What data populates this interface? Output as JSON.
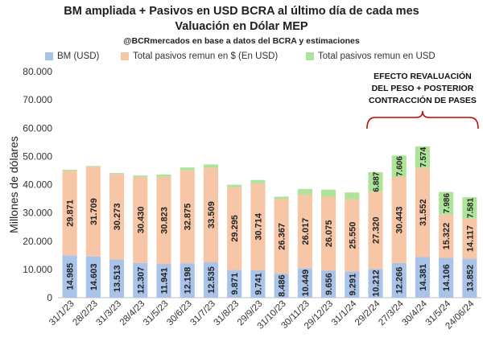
{
  "chart_data": {
    "type": "bar",
    "stacked": true,
    "title": "BM ampliada + Pasivos en USD BCRA al último día de cada mes",
    "subtitle": "Valuación en Dólar MEP",
    "source": "@BCRmercados en base a datos del BCRA y estimaciones",
    "ylabel": "Millones de dólares",
    "xlabel": "",
    "ylim": [
      0,
      80000
    ],
    "yticks": [
      "0",
      "10.000",
      "20.000",
      "30.000",
      "40.000",
      "50.000",
      "60.000",
      "70.000",
      "80.000"
    ],
    "legend_position": "top",
    "categories": [
      "31/1/23",
      "28/2/23",
      "31/3/23",
      "28/4/23",
      "31/5/23",
      "30/6/23",
      "31/7/23",
      "31/8/23",
      "29/9/23",
      "31/10/23",
      "30/11/23",
      "29/12/23",
      "31/1/24",
      "29/2/24",
      "27/3/24",
      "30/4/24",
      "31/5/24",
      "24/06/24"
    ],
    "series": [
      {
        "name": "BM (USD)",
        "color": "#a9c4e8",
        "values": [
          14985,
          14603,
          13513,
          12307,
          11941,
          12198,
          12535,
          9871,
          9741,
          8486,
          10449,
          9656,
          9291,
          10212,
          12266,
          14381,
          14106,
          13852
        ],
        "labels": [
          "14.985",
          "14.603",
          "13.513",
          "12.307",
          "11.941",
          "12.198",
          "12.535",
          "9.871",
          "9.741",
          "8.486",
          "10.449",
          "9.656",
          "9.291",
          "10.212",
          "12.266",
          "14.381",
          "14.106",
          "13.852"
        ]
      },
      {
        "name": "Total pasivos remun en $ (En USD)",
        "color": "#f7c6a6",
        "values": [
          29871,
          31709,
          30273,
          30430,
          30823,
          32875,
          33509,
          29295,
          30714,
          26367,
          26017,
          26075,
          25550,
          27320,
          30443,
          31552,
          15322,
          14117
        ],
        "labels": [
          "29.871",
          "31.709",
          "30.273",
          "30.430",
          "30.823",
          "32.875",
          "33.509",
          "29.295",
          "30.714",
          "26.367",
          "26.017",
          "26.075",
          "25.550",
          "27.320",
          "30.443",
          "31.552",
          "15.322",
          "14.117"
        ]
      },
      {
        "name": "Total pasivos remun en USD",
        "color": "#aee39a",
        "values": [
          400,
          300,
          300,
          500,
          800,
          1000,
          1100,
          800,
          1200,
          900,
          2000,
          2500,
          2400,
          6887,
          7606,
          7574,
          7986,
          7581
        ],
        "labels": [
          "",
          "",
          "",
          "",
          "",
          "",
          "",
          "",
          "",
          "",
          "",
          "",
          "",
          "6.887",
          "7.606",
          "7.574",
          "7.986",
          "7.581"
        ]
      }
    ],
    "annotation": {
      "lines": [
        "EFECTO REVALUACIÓN",
        "DEL PESO + POSTERIOR",
        "CONTRACCIÓN DE PASES"
      ],
      "span": [
        "29/2/24",
        "24/06/24"
      ]
    }
  }
}
